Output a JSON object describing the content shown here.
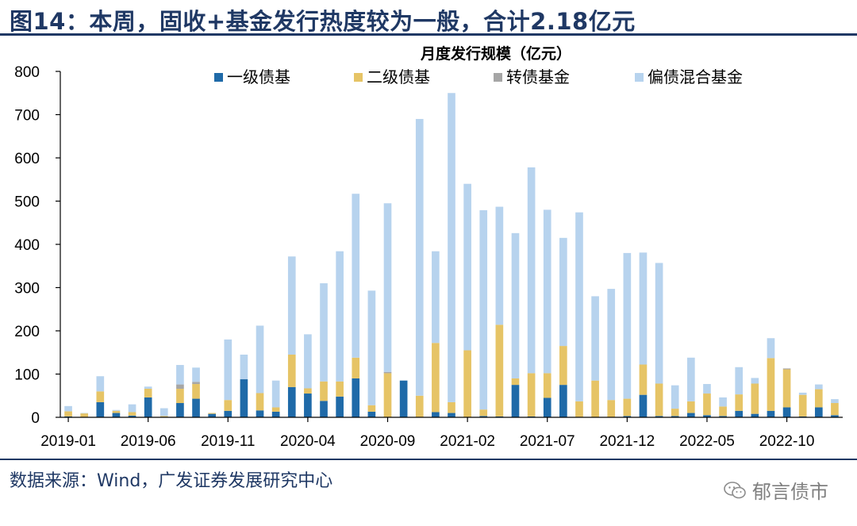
{
  "title": "图14：本周，固收+基金发行热度较为一般，合计2.18亿元",
  "source": "数据来源：Wind，广发证券发展研究中心",
  "watermark": "郁言债市",
  "colors": {
    "series": [
      "#1f6aa8",
      "#e6c466",
      "#a6a6a6",
      "#b7d3ee"
    ],
    "header": "#1f3864"
  },
  "chart_data": {
    "type": "bar",
    "stacked": true,
    "title": "月度发行规模（亿元）",
    "ylim": [
      0,
      800
    ],
    "yticks": [
      0,
      100,
      200,
      300,
      400,
      500,
      600,
      700,
      800
    ],
    "xtick_labels": [
      "2019-01",
      "2019-06",
      "2019-11",
      "2020-04",
      "2020-09",
      "2021-02",
      "2021-07",
      "2021-12",
      "2022-05",
      "2022-10"
    ],
    "xtick_every": 5,
    "legend_position": "top",
    "categories": [
      "2019-01",
      "2019-02",
      "2019-03",
      "2019-04",
      "2019-05",
      "2019-06",
      "2019-07",
      "2019-08",
      "2019-09",
      "2019-10",
      "2019-11",
      "2019-12",
      "2020-01",
      "2020-02",
      "2020-03",
      "2020-04",
      "2020-05",
      "2020-06",
      "2020-07",
      "2020-08",
      "2020-09",
      "2020-10",
      "2020-11",
      "2020-12",
      "2021-01",
      "2021-02",
      "2021-03",
      "2021-04",
      "2021-05",
      "2021-06",
      "2021-07",
      "2021-08",
      "2021-09",
      "2021-10",
      "2021-11",
      "2021-12",
      "2022-01",
      "2022-02",
      "2022-03",
      "2022-04",
      "2022-05",
      "2022-06",
      "2022-07",
      "2022-08",
      "2022-09",
      "2022-10",
      "2022-11",
      "2022-12",
      "2023-01"
    ],
    "series": [
      {
        "name": "一级债基",
        "values": [
          2,
          1,
          35,
          10,
          4,
          46,
          1,
          33,
          43,
          8,
          15,
          88,
          16,
          13,
          70,
          55,
          38,
          48,
          90,
          13,
          0,
          85,
          0,
          12,
          10,
          0,
          3,
          2,
          75,
          2,
          45,
          75,
          1,
          0,
          0,
          3,
          52,
          3,
          3,
          10,
          5,
          3,
          15,
          8,
          15,
          23,
          2,
          23,
          5
        ]
      },
      {
        "name": "二级债基",
        "values": [
          12,
          8,
          25,
          5,
          8,
          20,
          2,
          33,
          34,
          2,
          25,
          0,
          40,
          10,
          75,
          12,
          45,
          35,
          48,
          15,
          102,
          0,
          50,
          160,
          25,
          155,
          15,
          212,
          15,
          100,
          57,
          90,
          36,
          85,
          40,
          40,
          70,
          75,
          17,
          27,
          50,
          22,
          38,
          70,
          122,
          88,
          50,
          42,
          28
        ]
      },
      {
        "name": "转债基金",
        "values": [
          0,
          0,
          0,
          0,
          0,
          0,
          0,
          10,
          5,
          0,
          0,
          0,
          0,
          0,
          0,
          0,
          0,
          0,
          0,
          0,
          3,
          0,
          0,
          0,
          0,
          0,
          0,
          0,
          0,
          0,
          0,
          0,
          0,
          0,
          0,
          0,
          0,
          0,
          0,
          0,
          0,
          0,
          0,
          0,
          0,
          2,
          0,
          0,
          0
        ]
      },
      {
        "name": "偏债混合基金",
        "values": [
          12,
          1,
          35,
          2,
          18,
          5,
          18,
          45,
          33,
          0,
          140,
          57,
          156,
          62,
          227,
          125,
          227,
          301,
          379,
          265,
          390,
          0,
          640,
          212,
          715,
          385,
          461,
          273,
          336,
          476,
          378,
          250,
          437,
          195,
          257,
          337,
          259,
          279,
          54,
          101,
          22,
          21,
          63,
          13,
          46,
          0,
          5,
          11,
          9
        ]
      }
    ]
  }
}
